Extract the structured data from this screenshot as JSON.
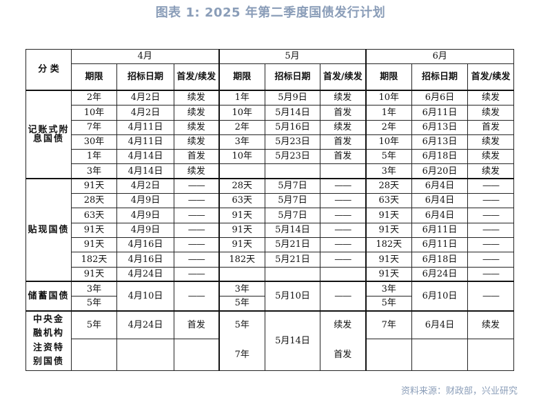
{
  "title": "图表 1: 2025 年第二季度国债发行计划",
  "source": "资料来源：财政部，兴业研究",
  "header": {
    "category": "分 类",
    "months": [
      "4月",
      "5月",
      "6月"
    ],
    "cols": [
      "期限",
      "招标日期",
      "首发/续发"
    ]
  },
  "sections": {
    "bookentry": {
      "label": "记账式附息国债",
      "rows": [
        [
          "2年",
          "4月2日",
          "续发",
          "1年",
          "5月9日",
          "续发",
          "10年",
          "6月6日",
          "续发"
        ],
        [
          "10年",
          "4月2日",
          "续发",
          "10年",
          "5月14日",
          "首发",
          "1年",
          "6月11日",
          "续发"
        ],
        [
          "7年",
          "4月11日",
          "续发",
          "2年",
          "5月16日",
          "续发",
          "2年",
          "6月13日",
          "首发"
        ],
        [
          "30年",
          "4月11日",
          "续发",
          "3年",
          "5月23日",
          "首发",
          "10年",
          "6月13日",
          "续发"
        ],
        [
          "1年",
          "4月14日",
          "首发",
          "10年",
          "5月23日",
          "首发",
          "5年",
          "6月18日",
          "续发"
        ],
        [
          "3年",
          "4月14日",
          "续发",
          "",
          "",
          "",
          "3年",
          "6月20日",
          "续发"
        ]
      ]
    },
    "discount": {
      "label": "贴现国债",
      "dash": "——",
      "rows": [
        [
          "91天",
          "4月2日",
          "——",
          "28天",
          "5月7日",
          "——",
          "28天",
          "6月4日",
          "——"
        ],
        [
          "28天",
          "4月9日",
          "——",
          "63天",
          "5月7日",
          "——",
          "63天",
          "6月4日",
          "——"
        ],
        [
          "63天",
          "4月9日",
          "——",
          "91天",
          "5月7日",
          "——",
          "91天",
          "6月4日",
          "——"
        ],
        [
          "91天",
          "4月9日",
          "——",
          "91天",
          "5月14日",
          "——",
          "91天",
          "6月11日",
          "——"
        ],
        [
          "91天",
          "4月16日",
          "——",
          "91天",
          "5月21日",
          "——",
          "182天",
          "6月11日",
          "——"
        ],
        [
          "182天",
          "4月16日",
          "——",
          "182天",
          "5月21日",
          "——",
          "91天",
          "6月18日",
          "——"
        ],
        [
          "91天",
          "4月24日",
          "——",
          "",
          "",
          "",
          "91天",
          "6月24日",
          "——"
        ]
      ]
    },
    "savings": {
      "label": "储蓄国债",
      "terms": [
        "3年",
        "5年"
      ],
      "dates": [
        "4月10日",
        "5月10日",
        "6月10日"
      ],
      "dash": "——"
    },
    "special": {
      "label": "中央金融机构注资特别国债",
      "apr": {
        "term": "5年",
        "date": "4月24日",
        "type": "首发"
      },
      "may": {
        "term1": "5年",
        "term2": "7年",
        "date": "5月14日",
        "type1": "续发",
        "type2": "首发"
      },
      "jun": {
        "term": "7年",
        "date": "6月4日",
        "type": "续发"
      }
    }
  }
}
